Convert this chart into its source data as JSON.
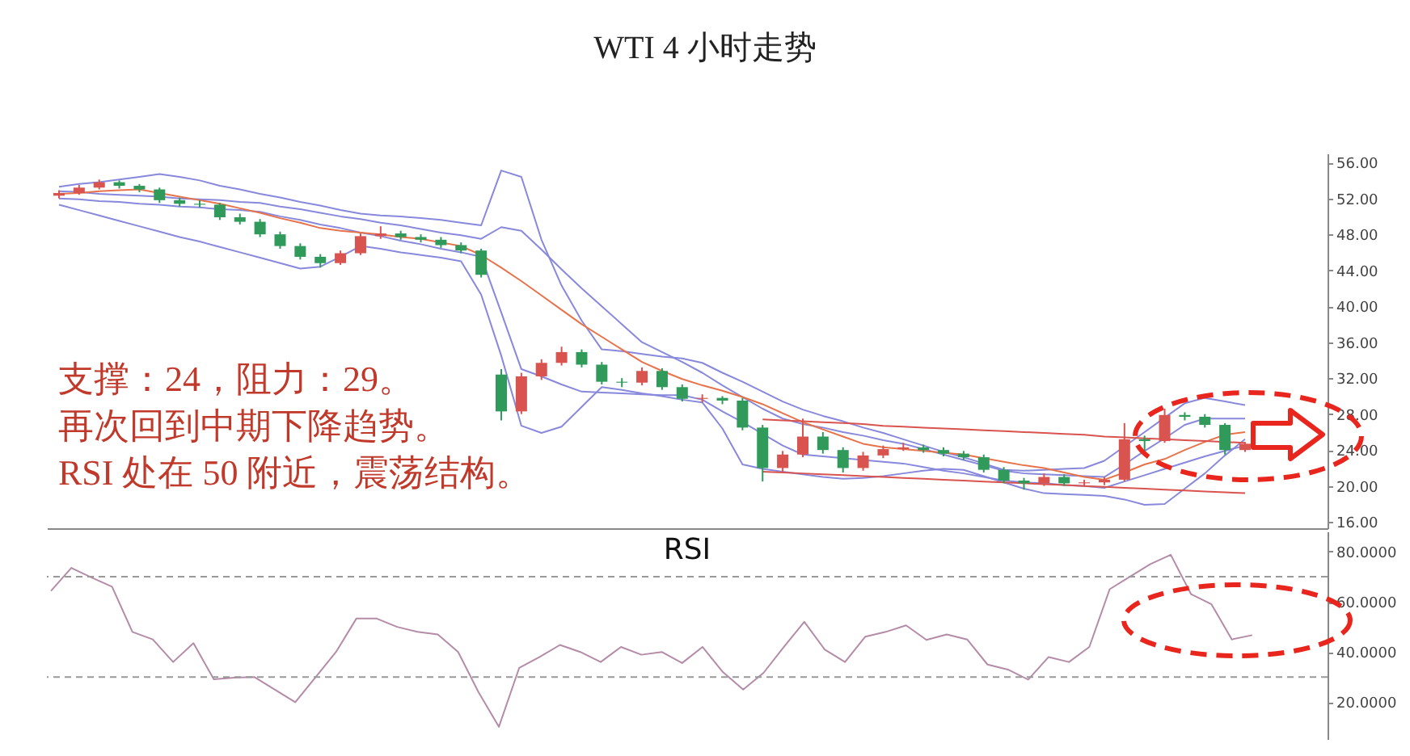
{
  "chart_data": [
    {
      "type": "candlestick",
      "title": "WTI 4 小时走势",
      "annotations": [
        "支撑：24，阻力：29。",
        "再次回到中期下降趋势。",
        "RSI 处在 50 附近，震荡结构。"
      ],
      "categories": [
        null,
        null,
        null,
        null,
        null,
        null,
        null,
        null,
        null,
        null,
        null,
        null,
        null,
        null,
        null,
        null,
        null,
        null,
        null,
        null,
        null,
        null,
        null,
        null,
        null,
        null,
        null,
        null,
        null,
        null,
        null,
        null,
        null,
        null,
        null,
        null,
        null,
        null,
        null,
        null,
        null,
        null,
        null,
        null,
        null,
        null,
        null,
        null,
        null,
        null,
        null,
        null,
        null,
        null,
        null,
        null,
        null,
        null,
        null,
        null
      ],
      "ohlc": [
        [
          52.3,
          52.9,
          52.0,
          52.6
        ],
        [
          52.6,
          53.5,
          52.4,
          53.2
        ],
        [
          53.2,
          54.1,
          53.0,
          53.8
        ],
        [
          53.8,
          54.0,
          53.1,
          53.4
        ],
        [
          53.4,
          53.6,
          52.7,
          53.0
        ],
        [
          53.0,
          53.2,
          51.5,
          51.8
        ],
        [
          51.8,
          52.1,
          51.1,
          51.4
        ],
        [
          51.4,
          51.8,
          51.0,
          51.3
        ],
        [
          51.3,
          51.5,
          49.6,
          49.9
        ],
        [
          49.9,
          50.3,
          49.1,
          49.4
        ],
        [
          49.4,
          49.7,
          47.7,
          48.0
        ],
        [
          48.0,
          48.3,
          46.4,
          46.7
        ],
        [
          46.7,
          47.0,
          45.2,
          45.5
        ],
        [
          45.5,
          45.8,
          44.3,
          44.8
        ],
        [
          44.8,
          46.2,
          44.6,
          45.9
        ],
        [
          45.9,
          48.1,
          45.7,
          47.8
        ],
        [
          47.8,
          48.9,
          47.5,
          48.1
        ],
        [
          48.1,
          48.4,
          47.4,
          47.7
        ],
        [
          47.7,
          48.0,
          47.1,
          47.4
        ],
        [
          47.4,
          47.7,
          46.5,
          46.8
        ],
        [
          46.8,
          47.1,
          45.9,
          46.2
        ],
        [
          46.2,
          46.4,
          43.2,
          43.5
        ],
        [
          32.4,
          33.0,
          27.3,
          28.3
        ],
        [
          28.3,
          32.6,
          28.0,
          32.2
        ],
        [
          32.2,
          34.1,
          31.8,
          33.7
        ],
        [
          33.7,
          35.5,
          33.4,
          34.9
        ],
        [
          34.9,
          35.2,
          33.2,
          33.5
        ],
        [
          33.5,
          33.8,
          31.3,
          31.6
        ],
        [
          31.6,
          32.0,
          31.0,
          31.5
        ],
        [
          31.5,
          33.2,
          31.2,
          32.8
        ],
        [
          32.8,
          33.1,
          30.7,
          31.0
        ],
        [
          31.0,
          31.3,
          29.4,
          29.7
        ],
        [
          29.7,
          30.2,
          29.3,
          29.8
        ],
        [
          29.8,
          30.0,
          29.1,
          29.5
        ],
        [
          29.5,
          29.8,
          26.2,
          26.5
        ],
        [
          26.5,
          26.8,
          20.5,
          22.0
        ],
        [
          22.0,
          23.9,
          21.6,
          23.5
        ],
        [
          23.5,
          27.5,
          23.2,
          25.5
        ],
        [
          25.5,
          26.0,
          23.6,
          24.0
        ],
        [
          24.0,
          24.3,
          21.5,
          22.0
        ],
        [
          22.0,
          23.8,
          21.7,
          23.4
        ],
        [
          23.4,
          24.5,
          23.1,
          24.1
        ],
        [
          24.1,
          24.8,
          23.9,
          24.3
        ],
        [
          24.3,
          24.6,
          23.7,
          24.0
        ],
        [
          24.0,
          24.3,
          23.3,
          23.6
        ],
        [
          23.6,
          23.9,
          22.9,
          23.2
        ],
        [
          23.2,
          23.5,
          21.5,
          21.8
        ],
        [
          21.8,
          22.1,
          20.3,
          20.6
        ],
        [
          20.6,
          20.9,
          19.6,
          20.3
        ],
        [
          20.3,
          21.4,
          20.0,
          21.0
        ],
        [
          21.0,
          21.3,
          20.0,
          20.3
        ],
        [
          20.3,
          20.7,
          20.0,
          20.4
        ],
        [
          20.4,
          21.0,
          20.1,
          20.7
        ],
        [
          20.7,
          27.0,
          20.5,
          25.2
        ],
        [
          25.2,
          25.6,
          23.8,
          25.0
        ],
        [
          25.0,
          28.6,
          24.8,
          27.9
        ],
        [
          27.9,
          28.2,
          27.3,
          27.7
        ],
        [
          27.7,
          28.0,
          26.5,
          26.8
        ],
        [
          26.8,
          27.0,
          23.5,
          24.0
        ],
        [
          24.0,
          24.9,
          23.8,
          24.7
        ]
      ],
      "colors": [
        "#d9534f",
        "#d9534f",
        "#d9534f",
        "#2f9a5a",
        "#2f9a5a",
        "#2f9a5a",
        "#2f9a5a",
        "#2f9a5a",
        "#2f9a5a",
        "#2f9a5a",
        "#2f9a5a",
        "#2f9a5a",
        "#2f9a5a",
        "#2f9a5a",
        "#d9534f",
        "#d9534f",
        "#d9534f",
        "#2f9a5a",
        "#2f9a5a",
        "#2f9a5a",
        "#2f9a5a",
        "#2f9a5a",
        "#2f9a5a",
        "#d9534f",
        "#d9534f",
        "#d9534f",
        "#2f9a5a",
        "#2f9a5a",
        "#2f9a5a",
        "#d9534f",
        "#2f9a5a",
        "#2f9a5a",
        "#d9534f",
        "#2f9a5a",
        "#2f9a5a",
        "#2f9a5a",
        "#d9534f",
        "#d9534f",
        "#2f9a5a",
        "#2f9a5a",
        "#d9534f",
        "#d9534f",
        "#d9534f",
        "#2f9a5a",
        "#2f9a5a",
        "#2f9a5a",
        "#2f9a5a",
        "#2f9a5a",
        "#2f9a5a",
        "#d9534f",
        "#2f9a5a",
        "#d9534f",
        "#d9534f",
        "#d9534f",
        "#2f9a5a",
        "#d9534f",
        "#2f9a5a",
        "#2f9a5a",
        "#2f9a5a",
        "#d9534f"
      ],
      "series": [
        {
          "type": "line",
          "color": "#8888dd",
          "values": [
            53.3,
            53.6,
            53.8,
            54.1,
            54.4,
            54.7,
            54.4,
            54.0,
            53.4,
            53.0,
            52.5,
            52.1,
            51.6,
            51.2,
            50.7,
            50.3,
            50.1,
            50.0,
            49.8,
            49.6,
            49.3,
            49.0,
            55.1,
            54.4,
            47.4,
            42.3,
            38.4,
            35.2,
            35.0,
            34.7,
            34.4,
            34.2,
            33.7,
            32.6,
            31.6,
            30.5,
            29.4,
            28.5,
            27.8,
            27.2,
            26.5,
            25.9,
            25.2,
            24.5,
            23.8,
            23.2,
            22.5,
            21.8,
            21.7,
            21.8,
            21.9,
            22.0,
            22.8,
            24.4,
            26.0,
            27.6,
            29.2,
            29.8,
            29.4,
            29.0
          ]
        },
        {
          "type": "line",
          "color": "#8888dd",
          "values": [
            52.8,
            52.7,
            52.5,
            52.4,
            52.3,
            52.2,
            52.0,
            51.9,
            51.8,
            51.6,
            51.5,
            51.1,
            50.8,
            50.4,
            50.0,
            49.7,
            49.3,
            49.0,
            48.6,
            48.2,
            47.9,
            47.5,
            48.8,
            48.4,
            46.3,
            44.1,
            42.0,
            40.0,
            38.0,
            36.0,
            34.9,
            33.8,
            32.6,
            31.2,
            29.9,
            28.6,
            27.5,
            26.9,
            26.5,
            26.0,
            25.6,
            25.1,
            24.7,
            24.1,
            23.5,
            22.9,
            22.3,
            21.7,
            21.4,
            21.3,
            21.2,
            21.1,
            21.0,
            22.4,
            23.9,
            25.3,
            26.8,
            27.5,
            27.5,
            27.5
          ]
        },
        {
          "type": "line",
          "color": "#8888dd",
          "values": [
            52.0,
            51.9,
            51.7,
            51.6,
            51.4,
            51.3,
            51.1,
            51.0,
            50.8,
            50.7,
            50.5,
            50.0,
            49.6,
            49.1,
            48.7,
            48.2,
            47.8,
            47.3,
            46.9,
            46.4,
            46.0,
            45.5,
            39.3,
            33.0,
            32.2,
            31.3,
            30.5,
            30.4,
            30.3,
            30.2,
            30.1,
            30.1,
            29.6,
            28.3,
            27.1,
            25.8,
            24.5,
            23.5,
            23.3,
            23.1,
            22.9,
            22.7,
            22.5,
            22.1,
            21.7,
            21.4,
            21.0,
            20.6,
            20.4,
            20.3,
            20.1,
            20.0,
            19.8,
            20.5,
            21.2,
            21.9,
            22.6,
            23.3,
            23.9,
            24.5
          ]
        },
        {
          "type": "line",
          "color": "#8888dd",
          "values": [
            51.3,
            50.7,
            50.1,
            49.5,
            48.9,
            48.3,
            47.7,
            47.2,
            46.6,
            46.0,
            45.4,
            44.8,
            44.2,
            44.4,
            45.5,
            46.7,
            46.4,
            46.0,
            45.7,
            45.4,
            45.0,
            41.3,
            34.5,
            26.7,
            25.9,
            26.6,
            28.8,
            31.0,
            30.7,
            30.3,
            30.0,
            29.6,
            29.3,
            26.4,
            22.4,
            21.9,
            21.6,
            21.3,
            21.0,
            20.8,
            20.9,
            21.1,
            21.4,
            21.7,
            21.9,
            21.8,
            21.1,
            20.4,
            19.7,
            19.2,
            19.1,
            19.0,
            18.9,
            18.5,
            17.9,
            18.0,
            19.7,
            21.4,
            23.4,
            25.2
          ]
        },
        {
          "type": "line",
          "color": "#e8734a",
          "values": [
            52.5,
            52.6,
            52.8,
            52.9,
            53.0,
            52.6,
            52.2,
            51.8,
            51.4,
            50.9,
            50.4,
            49.8,
            49.3,
            48.7,
            48.4,
            48.2,
            48.0,
            47.7,
            47.5,
            47.1,
            46.7,
            45.7,
            44.3,
            42.8,
            41.2,
            39.6,
            38.0,
            36.6,
            35.2,
            33.8,
            32.8,
            31.9,
            31.2,
            30.6,
            29.9,
            29.1,
            28.1,
            27.1,
            26.3,
            25.5,
            24.7,
            24.3,
            24.1,
            23.9,
            23.7,
            23.5,
            23.1,
            22.7,
            22.3,
            22.0,
            21.5,
            21.0,
            20.7,
            21.5,
            22.4,
            23.0,
            24.0,
            24.9,
            25.7,
            26.0
          ]
        },
        {
          "type": "line",
          "color": "#d9534f",
          "values": [
            null,
            null,
            null,
            null,
            null,
            null,
            null,
            null,
            null,
            null,
            null,
            null,
            null,
            null,
            null,
            null,
            null,
            null,
            null,
            null,
            null,
            null,
            null,
            null,
            null,
            null,
            null,
            null,
            null,
            null,
            null,
            null,
            null,
            null,
            null,
            27.4,
            27.3,
            27.2,
            27.1,
            27.0,
            26.9,
            26.7,
            26.6,
            26.5,
            26.4,
            26.3,
            26.2,
            26.1,
            26.0,
            25.9,
            25.8,
            25.7,
            25.5,
            25.4,
            25.3,
            25.2,
            25.1,
            25.0,
            24.9,
            24.8
          ]
        },
        {
          "type": "line",
          "color": "#d9534f",
          "values": [
            null,
            null,
            null,
            null,
            null,
            null,
            null,
            null,
            null,
            null,
            null,
            null,
            null,
            null,
            null,
            null,
            null,
            null,
            null,
            null,
            null,
            null,
            null,
            null,
            null,
            null,
            null,
            null,
            null,
            null,
            null,
            null,
            null,
            null,
            null,
            21.6,
            21.5,
            21.4,
            21.3,
            21.2,
            21.1,
            21.0,
            20.9,
            20.8,
            20.7,
            20.6,
            20.5,
            20.4,
            20.3,
            20.2,
            20.1,
            20.0,
            19.9,
            19.8,
            19.7,
            19.6,
            19.5,
            19.4,
            19.3,
            19.2
          ]
        }
      ],
      "ylim": [
        15.3,
        57
      ],
      "yticks": [
        {
          "value": 16,
          "label": "16.00"
        },
        {
          "value": 20,
          "label": "20.00"
        },
        {
          "value": 24,
          "label": "24.00"
        },
        {
          "value": 28,
          "label": "28.00"
        },
        {
          "value": 32,
          "label": "32.00"
        },
        {
          "value": 36,
          "label": "36.00"
        },
        {
          "value": 40,
          "label": "40.00"
        },
        {
          "value": 44,
          "label": "44.00"
        },
        {
          "value": 48,
          "label": "48.00"
        },
        {
          "value": 52,
          "label": "52.00"
        },
        {
          "value": 56,
          "label": "56.00"
        }
      ],
      "tick_labels": "y"
    },
    {
      "type": "line",
      "title": "RSI",
      "color": "#b48ca8",
      "categories": [
        null,
        null,
        null,
        null,
        null,
        null,
        null,
        null,
        null,
        null,
        null,
        null,
        null,
        null,
        null,
        null,
        null,
        null,
        null,
        null,
        null,
        null,
        null,
        null,
        null,
        null,
        null,
        null,
        null,
        null,
        null,
        null,
        null,
        null,
        null,
        null,
        null,
        null,
        null,
        null,
        null,
        null,
        null,
        null,
        null,
        null,
        null,
        null,
        null,
        null,
        null,
        null,
        null,
        null,
        null,
        null,
        null,
        null,
        null,
        null
      ],
      "values": [
        64.3,
        73.5,
        69.6,
        66,
        48,
        45,
        36,
        43.5,
        29.1,
        29.8,
        30,
        25,
        20,
        30,
        40,
        53.3,
        53.3,
        50,
        48,
        47,
        40,
        24,
        10.2,
        33.7,
        38,
        42.8,
        40,
        36,
        42,
        38.9,
        40,
        35.6,
        42,
        32,
        25,
        31.7,
        42,
        52,
        41,
        36,
        46.1,
        48,
        50.6,
        44.8,
        47,
        45,
        35,
        33,
        29,
        38,
        36,
        42,
        65,
        70,
        75,
        78.7,
        63,
        59,
        45,
        46.7
      ],
      "ylim": [
        5,
        88
      ],
      "yticks": [
        {
          "value": 20,
          "label": "20.0000"
        },
        {
          "value": 40,
          "label": "40.0000"
        },
        {
          "value": 60,
          "label": "60.0000"
        },
        {
          "value": 80,
          "label": "80.0000"
        }
      ],
      "ref_lines": [
        {
          "axis": "y",
          "value": 70,
          "color": "#999999",
          "line_style": "dashed"
        },
        {
          "axis": "y",
          "value": 30,
          "color": "#999999",
          "line_style": "dashed"
        }
      ],
      "tick_labels": "y"
    }
  ]
}
